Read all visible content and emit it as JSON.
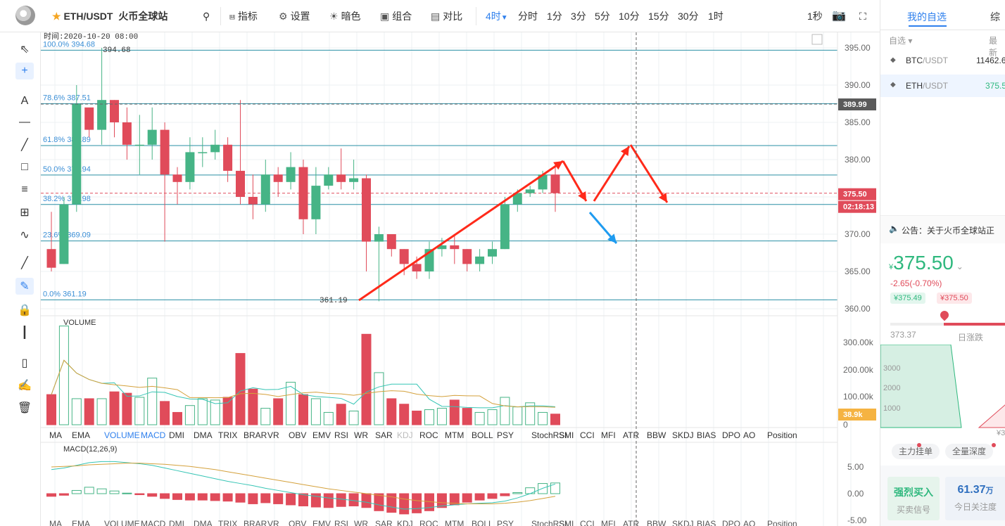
{
  "header": {
    "pair": "ETH/USDT",
    "exchange": "火币全球站",
    "indicators": "指标",
    "settings": "设置",
    "theme": "暗色",
    "combine": "组合",
    "compare": "对比",
    "current_tf": "4时",
    "timeframes": [
      "分时",
      "1分",
      "3分",
      "5分",
      "10分",
      "15分",
      "30分",
      "1时"
    ],
    "refresh": "1秒"
  },
  "info": {
    "time_label": "时间:2020-10-20 08:00"
  },
  "price_axis": {
    "ticks": [
      "395.00",
      "390.00",
      "385.00",
      "380.00",
      "375.00",
      "370.00",
      "365.00",
      "360.00"
    ],
    "crosshair_price": "389.99",
    "last_price": "375.50",
    "countdown": "02:18:13"
  },
  "fib": [
    {
      "label": "100.0% 394.68",
      "price": 394.68
    },
    {
      "label": "78.6% 387.51",
      "price": 387.51
    },
    {
      "label": "61.8% 381.89",
      "price": 381.89
    },
    {
      "label": "50.0% 377.94",
      "price": 377.94
    },
    {
      "label": "38.2% 373.98",
      "price": 373.98
    },
    {
      "label": "23.6% 369.09",
      "price": 369.09
    },
    {
      "label": "0.0% 361.19",
      "price": 361.19
    }
  ],
  "marks": {
    "high": "394.68",
    "low": "361.19"
  },
  "volume": {
    "label": "VOLUME",
    "ticks": [
      "300.00k",
      "200.00k",
      "100.00k",
      "0"
    ],
    "last": "38.9k"
  },
  "macd": {
    "label": "MACD(12,26,9)",
    "ticks": [
      "5.00",
      "0.00",
      "-5.00"
    ]
  },
  "indicator_tabs": [
    "MA",
    "EMA",
    "VOLUME",
    "MACD",
    "DMI",
    "DMA",
    "TRIX",
    "BRAR",
    "VR",
    "OBV",
    "EMV",
    "RSI",
    "WR",
    "SAR",
    "KDJ",
    "ROC",
    "MTM",
    "BOLL",
    "PSY",
    "StochRSI",
    "SMI",
    "CCI",
    "MFI",
    "ATR",
    "BBW",
    "SKDJ",
    "BIAS",
    "DPO",
    "AO",
    "Position"
  ],
  "chart_data": {
    "type": "candlestick",
    "candles": [
      [
        368,
        365.5,
        373,
        365
      ],
      [
        366,
        374,
        375,
        366
      ],
      [
        374,
        387.5,
        390,
        373
      ],
      [
        387,
        384,
        386,
        383
      ],
      [
        384,
        388,
        395,
        382
      ],
      [
        388,
        385,
        388,
        383
      ],
      [
        385,
        382,
        387,
        380
      ],
      [
        382,
        382,
        386,
        378
      ],
      [
        382,
        384,
        387,
        380
      ],
      [
        384,
        378,
        385,
        369
      ],
      [
        378,
        377,
        379,
        374
      ],
      [
        377,
        381,
        383,
        376
      ],
      [
        381,
        381,
        383,
        379
      ],
      [
        381,
        382,
        384,
        380
      ],
      [
        382,
        378.5,
        383,
        377
      ],
      [
        378.5,
        375,
        388,
        374
      ],
      [
        375,
        374,
        378,
        372
      ],
      [
        374,
        378,
        380,
        373
      ],
      [
        378,
        377,
        379,
        375
      ],
      [
        377,
        379,
        381,
        376
      ],
      [
        379,
        372,
        380,
        370
      ],
      [
        372,
        376.5,
        379,
        370
      ],
      [
        376.5,
        378,
        379,
        376
      ],
      [
        378,
        377,
        381.5,
        376
      ],
      [
        377,
        377.5,
        380,
        376
      ],
      [
        377.5,
        369,
        378,
        365
      ],
      [
        369,
        370,
        371,
        361
      ],
      [
        370,
        368,
        370,
        367
      ],
      [
        368,
        366,
        368,
        364.5
      ],
      [
        366,
        365,
        367,
        364
      ],
      [
        365,
        368,
        369,
        364
      ],
      [
        368,
        368.5,
        369.5,
        367
      ],
      [
        368.5,
        368,
        370,
        366
      ],
      [
        368,
        366,
        368,
        365
      ],
      [
        366,
        367,
        368,
        365
      ],
      [
        367,
        368,
        369,
        366
      ],
      [
        368,
        374,
        375,
        368
      ],
      [
        374,
        375.5,
        376,
        373
      ],
      [
        375.5,
        376,
        376.5,
        375
      ],
      [
        376,
        378,
        378.5,
        375.5
      ],
      [
        378,
        375.5,
        379.5,
        373
      ]
    ],
    "volume": [
      110,
      360,
      95,
      95,
      95,
      120,
      115,
      100,
      170,
      85,
      45,
      70,
      95,
      90,
      100,
      260,
      130,
      60,
      95,
      155,
      110,
      95,
      45,
      75,
      50,
      330,
      190,
      95,
      75,
      50,
      55,
      60,
      90,
      60,
      45,
      55,
      100,
      65,
      80,
      45,
      38.9
    ],
    "macd_hist": [
      -0.5,
      -0.3,
      0.6,
      1.2,
      0.9,
      0.5,
      0.1,
      -0.2,
      -0.5,
      -0.9,
      -1.1,
      -1.2,
      -1.2,
      -1.3,
      -1.4,
      -1.6,
      -1.9,
      -1.7,
      -1.9,
      -2.1,
      -2.3,
      -2.5,
      -2.6,
      -2.4,
      -2.3,
      -2.6,
      -3.2,
      -3.5,
      -3.8,
      -3.6,
      -3.2,
      -2.6,
      -2.1,
      -1.6,
      -1.2,
      -0.9,
      -0.4,
      0.2,
      1.1,
      1.9,
      2.0
    ],
    "ylim": [
      359,
      397
    ]
  },
  "right": {
    "tab_watch": "我的自选",
    "tab_other": "综",
    "watch_label": "自选",
    "latest_label": "最新",
    "rows": [
      {
        "sym": "BTC",
        "quote": "/USDT",
        "price": "11462.6"
      },
      {
        "sym": "ETH",
        "quote": "/USDT",
        "price": "375.5"
      }
    ],
    "notice": "公告：关于火币全球站正",
    "price": "375.50",
    "currency": "¥",
    "change": "-2.65(-0.70%)",
    "bid": "¥375.49",
    "ask": "¥375.50",
    "range_low": "373.37",
    "range_label": "日涨跌",
    "depth_ticks": [
      "3000",
      "2000",
      "1000"
    ],
    "depth_right": "¥3",
    "btn1": "主力挂单",
    "btn2": "全量深度",
    "signal_title": "强烈买入",
    "signal_sub": "买卖信号",
    "attention_value": "61.37",
    "attention_unit": "万",
    "attention_sub": "今日关注度"
  }
}
